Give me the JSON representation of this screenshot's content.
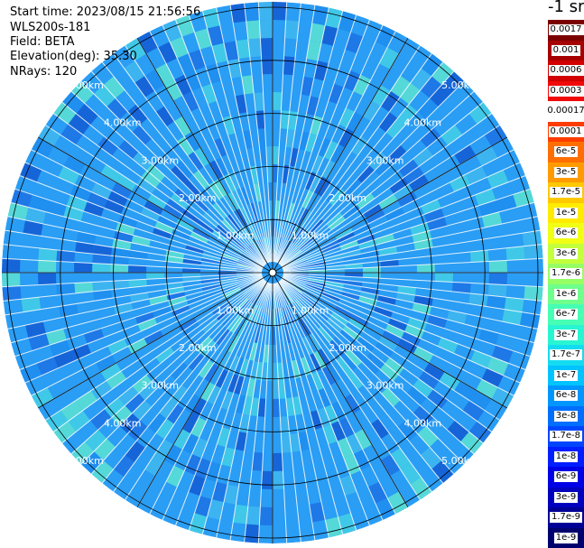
{
  "header": {
    "start_time": "Start time: 2023/08/15 21:56:56",
    "instrument": "WLS200s-181",
    "field": "Field: BETA",
    "elevation": "Elevation(deg): 35.30",
    "nrays": "NRays: 120"
  },
  "ppi": {
    "ray_count": 120,
    "max_range_km": 5.0,
    "range_rings": [
      {
        "range_km": 1,
        "label": "1.00km"
      },
      {
        "range_km": 2,
        "label": "2.00km"
      },
      {
        "range_km": 3,
        "label": "3.00km"
      },
      {
        "range_km": 4,
        "label": "4.00km"
      },
      {
        "range_km": 5,
        "label": "5.00km"
      }
    ],
    "colors": {
      "outer_fill": "#2a9df4",
      "ring_color": "#000000",
      "ray_gap_color": "#ffffff",
      "label_color": "#ffffff"
    }
  },
  "colorbar": {
    "unit_label": "-1 sr",
    "levels": [
      {
        "label": "0.0017",
        "color": "#7a0000"
      },
      {
        "label": "0.001",
        "color": "#a60000"
      },
      {
        "label": "0.0006",
        "color": "#d20000"
      },
      {
        "label": "0.0003",
        "color": "#f00a0a"
      },
      {
        "label": "0.00017",
        "color": "#ffffff"
      },
      {
        "label": "0.0001",
        "color": "#ff3c00"
      },
      {
        "label": "6e-5",
        "color": "#ff6e00"
      },
      {
        "label": "3e-5",
        "color": "#ff9b00"
      },
      {
        "label": "1.7e-5",
        "color": "#ffc800"
      },
      {
        "label": "1e-5",
        "color": "#ffeb00"
      },
      {
        "label": "6e-6",
        "color": "#f0ff14"
      },
      {
        "label": "3e-6",
        "color": "#c3ff3c"
      },
      {
        "label": "1.7e-6",
        "color": "#96ff64"
      },
      {
        "label": "1e-6",
        "color": "#6eff8c"
      },
      {
        "label": "6e-7",
        "color": "#46ffb4"
      },
      {
        "label": "3e-7",
        "color": "#28f5d2"
      },
      {
        "label": "1.7e-7",
        "color": "#14dcf0"
      },
      {
        "label": "1e-7",
        "color": "#00c3ff"
      },
      {
        "label": "6e-8",
        "color": "#0096ff"
      },
      {
        "label": "3e-8",
        "color": "#006eff"
      },
      {
        "label": "1.7e-8",
        "color": "#0046ff"
      },
      {
        "label": "1e-8",
        "color": "#001eff"
      },
      {
        "label": "6e-9",
        "color": "#0000e6"
      },
      {
        "label": "3e-9",
        "color": "#0000be"
      },
      {
        "label": "1.7e-9",
        "color": "#000096"
      },
      {
        "label": "1e-9",
        "color": "#00006e"
      }
    ]
  }
}
